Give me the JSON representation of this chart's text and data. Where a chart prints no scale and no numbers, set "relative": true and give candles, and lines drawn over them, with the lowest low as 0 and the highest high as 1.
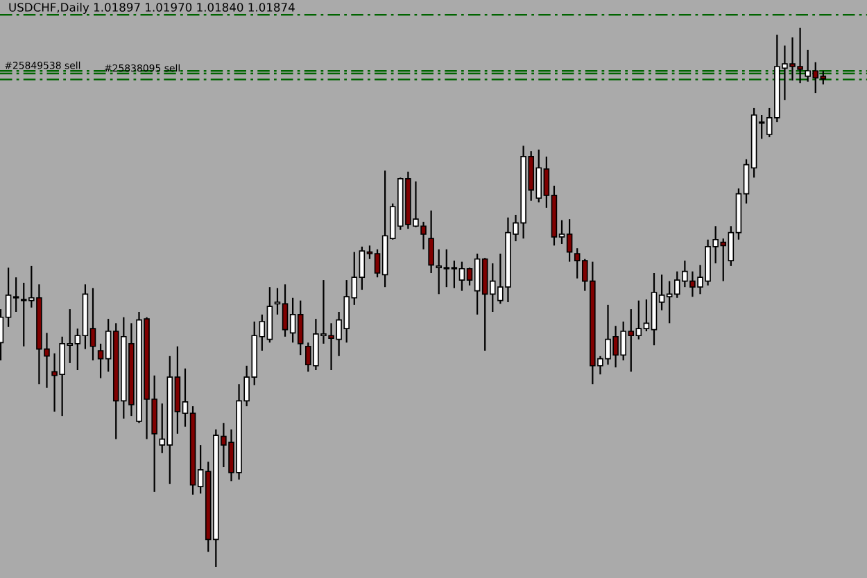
{
  "chart_data": {
    "type": "candlestick",
    "title": "USDCHF,Daily 1.01897 1.01970 1.01840 1.01874",
    "relative": true,
    "categories": [
      null,
      null,
      null,
      null,
      null,
      null,
      null,
      null,
      null,
      null,
      null,
      null,
      null,
      null,
      null,
      null,
      null,
      null,
      null,
      null,
      null,
      null,
      null,
      null,
      null,
      null,
      null,
      null,
      null,
      null,
      null,
      null,
      null,
      null,
      null,
      null,
      null,
      null,
      null,
      null,
      null,
      null,
      null,
      null,
      null,
      null,
      null,
      null,
      null,
      null,
      null,
      null,
      null,
      null,
      null,
      null,
      null,
      null,
      null,
      null,
      null,
      null,
      null,
      null,
      null,
      null,
      null,
      null,
      null,
      null,
      null,
      null,
      null,
      null,
      null,
      null,
      null,
      null,
      null,
      null,
      null,
      null,
      null,
      null,
      null,
      null,
      null,
      null,
      null,
      null,
      null,
      null,
      null,
      null,
      null,
      null,
      null,
      null,
      null,
      null,
      null,
      null,
      null,
      null,
      null,
      null,
      null,
      null
    ],
    "ohlc": [
      [
        0.416,
        0.478,
        0.383,
        0.463
      ],
      [
        0.463,
        0.555,
        0.445,
        0.504
      ],
      [
        0.501,
        0.537,
        0.473,
        0.499
      ],
      [
        0.496,
        0.527,
        0.409,
        0.494
      ],
      [
        0.494,
        0.558,
        0.481,
        0.499
      ],
      [
        0.499,
        0.524,
        0.339,
        0.404
      ],
      [
        0.404,
        0.434,
        0.332,
        0.391
      ],
      [
        0.362,
        0.396,
        0.288,
        0.355
      ],
      [
        0.357,
        0.427,
        0.28,
        0.414
      ],
      [
        0.411,
        0.478,
        0.378,
        0.414
      ],
      [
        0.414,
        0.442,
        0.365,
        0.429
      ],
      [
        0.429,
        0.524,
        0.404,
        0.506
      ],
      [
        0.442,
        0.517,
        0.383,
        0.409
      ],
      [
        0.401,
        0.414,
        0.35,
        0.386
      ],
      [
        0.386,
        0.46,
        0.362,
        0.437
      ],
      [
        0.437,
        0.452,
        0.237,
        0.308
      ],
      [
        0.308,
        0.463,
        0.275,
        0.427
      ],
      [
        0.414,
        0.452,
        0.28,
        0.301
      ],
      [
        0.27,
        0.473,
        0.267,
        0.458
      ],
      [
        0.46,
        0.463,
        0.237,
        0.311
      ],
      [
        0.311,
        0.355,
        0.139,
        0.247
      ],
      [
        0.226,
        0.303,
        0.211,
        0.237
      ],
      [
        0.226,
        0.391,
        0.154,
        0.352
      ],
      [
        0.352,
        0.409,
        0.247,
        0.288
      ],
      [
        0.285,
        0.368,
        0.26,
        0.306
      ],
      [
        0.285,
        0.298,
        0.134,
        0.152
      ],
      [
        0.149,
        0.226,
        0.136,
        0.18
      ],
      [
        0.177,
        0.195,
        0.028,
        0.051
      ],
      [
        0.051,
        0.255,
        0,
        0.244
      ],
      [
        0.242,
        0.267,
        0.185,
        0.226
      ],
      [
        0.231,
        0.255,
        0.159,
        0.175
      ],
      [
        0.175,
        0.339,
        0.162,
        0.308
      ],
      [
        0.308,
        0.373,
        0.298,
        0.352
      ],
      [
        0.352,
        0.455,
        0.337,
        0.429
      ],
      [
        0.427,
        0.468,
        0.401,
        0.455
      ],
      [
        0.422,
        0.519,
        0.416,
        0.483
      ],
      [
        0.488,
        0.517,
        0.468,
        0.491
      ],
      [
        0.488,
        0.524,
        0.427,
        0.44
      ],
      [
        0.434,
        0.499,
        0.416,
        0.468
      ],
      [
        0.468,
        0.494,
        0.393,
        0.414
      ],
      [
        0.409,
        0.416,
        0.362,
        0.375
      ],
      [
        0.373,
        0.46,
        0.365,
        0.432
      ],
      [
        0.429,
        0.532,
        0.414,
        0.432
      ],
      [
        0.429,
        0.452,
        0.365,
        0.424
      ],
      [
        0.422,
        0.473,
        0.391,
        0.458
      ],
      [
        0.442,
        0.532,
        0.416,
        0.501
      ],
      [
        0.499,
        0.584,
        0.486,
        0.537
      ],
      [
        0.537,
        0.594,
        0.514,
        0.586
      ],
      [
        0.584,
        0.596,
        0.571,
        0.581
      ],
      [
        0.581,
        0.589,
        0.537,
        0.545
      ],
      [
        0.542,
        0.735,
        0.519,
        0.614
      ],
      [
        0.609,
        0.674,
        0.607,
        0.668
      ],
      [
        0.632,
        0.722,
        0.625,
        0.72
      ],
      [
        0.72,
        0.733,
        0.627,
        0.635
      ],
      [
        0.632,
        0.715,
        0.63,
        0.645
      ],
      [
        0.632,
        0.64,
        0.589,
        0.617
      ],
      [
        0.609,
        0.661,
        0.545,
        0.56
      ],
      [
        0.555,
        0.589,
        0.506,
        0.558
      ],
      [
        0.555,
        0.589,
        0.519,
        0.553
      ],
      [
        0.555,
        0.568,
        0.517,
        0.553
      ],
      [
        0.532,
        0.566,
        0.512,
        0.553
      ],
      [
        0.553,
        0.555,
        0.522,
        0.532
      ],
      [
        0.512,
        0.581,
        0.468,
        0.571
      ],
      [
        0.571,
        0.573,
        0.401,
        0.506
      ],
      [
        0.506,
        0.563,
        0.473,
        0.53
      ],
      [
        0.494,
        0.581,
        0.488,
        0.519
      ],
      [
        0.519,
        0.648,
        0.491,
        0.62
      ],
      [
        0.617,
        0.653,
        0.604,
        0.638
      ],
      [
        0.638,
        0.781,
        0.609,
        0.761
      ],
      [
        0.761,
        0.771,
        0.679,
        0.699
      ],
      [
        0.684,
        0.774,
        0.676,
        0.74
      ],
      [
        0.738,
        0.761,
        0.666,
        0.689
      ],
      [
        0.689,
        0.707,
        0.596,
        0.612
      ],
      [
        0.612,
        0.643,
        0.599,
        0.617
      ],
      [
        0.617,
        0.645,
        0.566,
        0.584
      ],
      [
        0.581,
        0.591,
        0.535,
        0.568
      ],
      [
        0.568,
        0.571,
        0.512,
        0.53
      ],
      [
        0.53,
        0.566,
        0.339,
        0.373
      ],
      [
        0.373,
        0.391,
        0.357,
        0.386
      ],
      [
        0.386,
        0.486,
        0.375,
        0.422
      ],
      [
        0.427,
        0.447,
        0.37,
        0.393
      ],
      [
        0.393,
        0.455,
        0.383,
        0.437
      ],
      [
        0.437,
        0.478,
        0.362,
        0.429
      ],
      [
        0.429,
        0.494,
        0.422,
        0.442
      ],
      [
        0.442,
        0.496,
        0.437,
        0.452
      ],
      [
        0.44,
        0.545,
        0.411,
        0.509
      ],
      [
        0.491,
        0.542,
        0.476,
        0.504
      ],
      [
        0.501,
        0.53,
        0.452,
        0.506
      ],
      [
        0.506,
        0.548,
        0.499,
        0.532
      ],
      [
        0.53,
        0.568,
        0.519,
        0.548
      ],
      [
        0.53,
        0.548,
        0.501,
        0.519
      ],
      [
        0.519,
        0.56,
        0.506,
        0.537
      ],
      [
        0.53,
        0.607,
        0.522,
        0.594
      ],
      [
        0.594,
        0.632,
        0.563,
        0.607
      ],
      [
        0.602,
        0.609,
        0.53,
        0.596
      ],
      [
        0.568,
        0.632,
        0.558,
        0.62
      ],
      [
        0.62,
        0.702,
        0.607,
        0.692
      ],
      [
        0.692,
        0.756,
        0.674,
        0.746
      ],
      [
        0.74,
        0.851,
        0.722,
        0.838
      ],
      [
        0.825,
        0.838,
        0.794,
        0.823
      ],
      [
        0.802,
        0.851,
        0.797,
        0.833
      ],
      [
        0.833,
        0.987,
        0.825,
        0.928
      ],
      [
        0.925,
        0.967,
        0.866,
        0.933
      ],
      [
        0.933,
        0.982,
        0.902,
        0.928
      ],
      [
        0.928,
        1,
        0.897,
        0.923
      ],
      [
        0.91,
        0.959,
        0.9,
        0.92
      ],
      [
        0.92,
        0.936,
        0.879,
        0.907
      ],
      [
        0.91,
        0.92,
        0.895,
        0.905
      ]
    ],
    "colors": [
      "#ffffff",
      "#ffffff",
      "#800000",
      "#800000",
      "#ffffff",
      "#800000",
      "#800000",
      "#800000",
      "#ffffff",
      "#ffffff",
      "#ffffff",
      "#ffffff",
      "#800000",
      "#800000",
      "#ffffff",
      "#800000",
      "#ffffff",
      "#800000",
      "#ffffff",
      "#800000",
      "#800000",
      "#ffffff",
      "#ffffff",
      "#800000",
      "#ffffff",
      "#800000",
      "#ffffff",
      "#800000",
      "#ffffff",
      "#800000",
      "#800000",
      "#ffffff",
      "#ffffff",
      "#ffffff",
      "#ffffff",
      "#ffffff",
      "#ffffff",
      "#800000",
      "#ffffff",
      "#800000",
      "#800000",
      "#ffffff",
      "#ffffff",
      "#800000",
      "#ffffff",
      "#ffffff",
      "#ffffff",
      "#ffffff",
      "#800000",
      "#800000",
      "#ffffff",
      "#ffffff",
      "#ffffff",
      "#800000",
      "#ffffff",
      "#800000",
      "#800000",
      "#ffffff",
      "#800000",
      "#800000",
      "#ffffff",
      "#800000",
      "#ffffff",
      "#800000",
      "#ffffff",
      "#ffffff",
      "#ffffff",
      "#ffffff",
      "#ffffff",
      "#800000",
      "#ffffff",
      "#800000",
      "#800000",
      "#ffffff",
      "#800000",
      "#800000",
      "#800000",
      "#800000",
      "#ffffff",
      "#ffffff",
      "#800000",
      "#ffffff",
      "#800000",
      "#ffffff",
      "#ffffff",
      "#ffffff",
      "#ffffff",
      "#ffffff",
      "#ffffff",
      "#ffffff",
      "#800000",
      "#ffffff",
      "#ffffff",
      "#ffffff",
      "#800000",
      "#ffffff",
      "#ffffff",
      "#ffffff",
      "#ffffff",
      "#800000",
      "#ffffff",
      "#ffffff",
      "#ffffff",
      "#800000",
      "#800000",
      "#ffffff",
      "#800000",
      "#800000"
    ],
    "ref_lines": [
      {
        "axis": "y",
        "value": 1.024,
        "color": "#006400",
        "line_style": "dashdot"
      },
      {
        "axis": "y",
        "value": 0.92,
        "label": "#25849538 sell",
        "color": "#006400",
        "line_style": "dashdot"
      },
      {
        "axis": "y",
        "value": 0.915,
        "label": "#25838095 sell",
        "color": "#006400",
        "line_style": "dashdot"
      },
      {
        "axis": "y",
        "value": 0.904,
        "color": "#006400",
        "line_style": "dashdot"
      }
    ]
  }
}
